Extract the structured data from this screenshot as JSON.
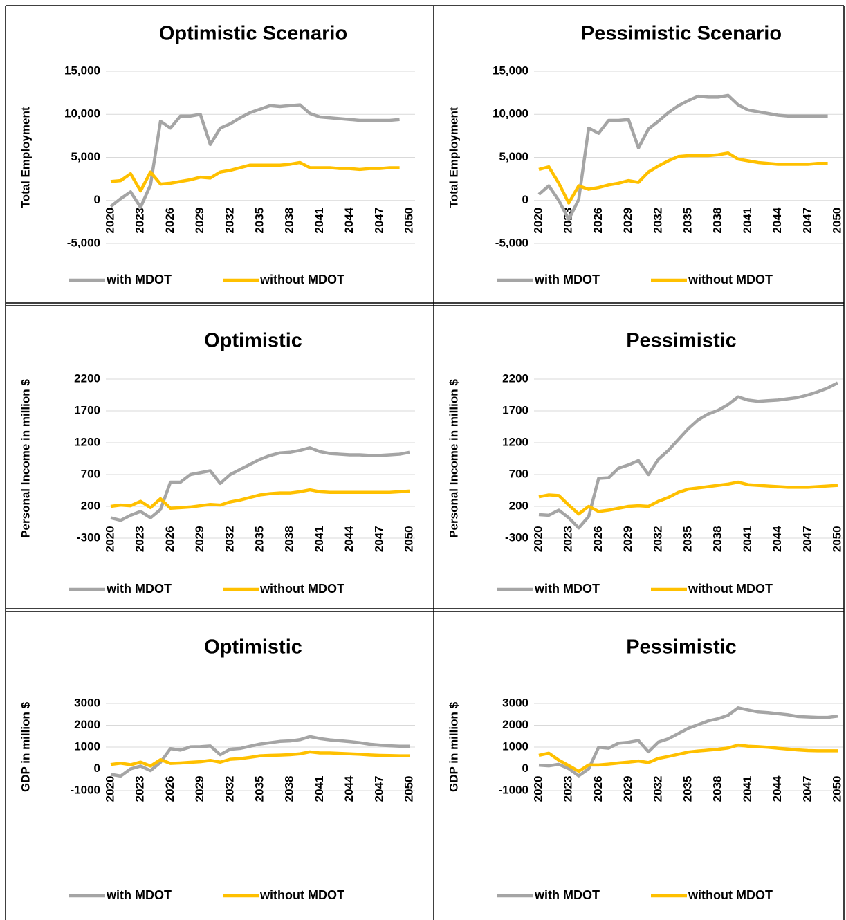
{
  "chart_data": [
    {
      "type": "line",
      "title": "Optimistic Scenario",
      "y_label": "Total Employment",
      "x": [
        2020,
        2021,
        2022,
        2023,
        2024,
        2025,
        2026,
        2027,
        2028,
        2029,
        2030,
        2031,
        2032,
        2033,
        2034,
        2035,
        2036,
        2037,
        2038,
        2039,
        2040,
        2041,
        2042,
        2043,
        2044,
        2045,
        2046,
        2047,
        2048,
        2049
      ],
      "xlim": [
        2020,
        2050
      ],
      "xticks": [
        2020,
        2023,
        2026,
        2029,
        2032,
        2035,
        2038,
        2041,
        2044,
        2047,
        2050
      ],
      "ylim": [
        -5000,
        15000
      ],
      "yticks": [
        {
          "value": -5000,
          "label": "-5,000"
        },
        0,
        {
          "value": 5000,
          "label": "5,000"
        },
        {
          "value": 10000,
          "label": "10,000"
        },
        {
          "value": 15000,
          "label": "15,000"
        }
      ],
      "grid": true,
      "legend": "bottom",
      "series": [
        {
          "name": "with MDOT",
          "color": "#a5a5a5",
          "values": [
            -700,
            200,
            1000,
            -800,
            1800,
            9200,
            8400,
            9800,
            9800,
            10000,
            6500,
            8400,
            8900,
            9600,
            10200,
            10600,
            11000,
            10900,
            11000,
            11100,
            10100,
            9700,
            9600,
            9500,
            9400,
            9300,
            9300,
            9300,
            9300,
            9400
          ]
        },
        {
          "name": "without MDOT",
          "color": "#ffc000",
          "values": [
            2200,
            2300,
            3100,
            1100,
            3300,
            1900,
            2000,
            2200,
            2400,
            2700,
            2600,
            3300,
            3500,
            3800,
            4100,
            4100,
            4100,
            4100,
            4200,
            4400,
            3800,
            3800,
            3800,
            3700,
            3700,
            3600,
            3700,
            3700,
            3800,
            3800
          ]
        }
      ]
    },
    {
      "type": "line",
      "title": "Pessimistic Scenario",
      "y_label": "Total Employment",
      "x": [
        2020,
        2021,
        2022,
        2023,
        2024,
        2025,
        2026,
        2027,
        2028,
        2029,
        2030,
        2031,
        2032,
        2033,
        2034,
        2035,
        2036,
        2037,
        2038,
        2039,
        2040,
        2041,
        2042,
        2043,
        2044,
        2045,
        2046,
        2047,
        2048,
        2049
      ],
      "xlim": [
        2020,
        2050
      ],
      "xticks": [
        2020,
        2023,
        2026,
        2029,
        2032,
        2035,
        2038,
        2041,
        2044,
        2047,
        2050
      ],
      "ylim": [
        -5000,
        15000
      ],
      "yticks": [
        {
          "value": -5000,
          "label": "-5,000"
        },
        0,
        {
          "value": 5000,
          "label": "5,000"
        },
        {
          "value": 10000,
          "label": "10,000"
        },
        {
          "value": 15000,
          "label": "15,000"
        }
      ],
      "grid": true,
      "legend": "bottom",
      "series": [
        {
          "name": "with MDOT",
          "color": "#a5a5a5",
          "values": [
            700,
            1700,
            0,
            -2200,
            100,
            8400,
            7800,
            9300,
            9300,
            9400,
            6100,
            8300,
            9200,
            10200,
            11000,
            11600,
            12100,
            12000,
            12000,
            12200,
            11100,
            10500,
            10300,
            10100,
            9900,
            9800,
            9800,
            9800,
            9800,
            9800
          ]
        },
        {
          "name": "without MDOT",
          "color": "#ffc000",
          "values": [
            3600,
            3900,
            2000,
            -300,
            1700,
            1300,
            1500,
            1800,
            2000,
            2300,
            2100,
            3300,
            4000,
            4600,
            5100,
            5200,
            5200,
            5200,
            5300,
            5500,
            4800,
            4600,
            4400,
            4300,
            4200,
            4200,
            4200,
            4200,
            4300,
            4300
          ]
        }
      ]
    },
    {
      "type": "line",
      "title": "Optimistic",
      "y_label": "Personal Income in million $",
      "x": [
        2020,
        2021,
        2022,
        2023,
        2024,
        2025,
        2026,
        2027,
        2028,
        2029,
        2030,
        2031,
        2032,
        2033,
        2034,
        2035,
        2036,
        2037,
        2038,
        2039,
        2040,
        2041,
        2042,
        2043,
        2044,
        2045,
        2046,
        2047,
        2048,
        2049,
        2050
      ],
      "xlim": [
        2020,
        2050
      ],
      "xticks": [
        2020,
        2023,
        2026,
        2029,
        2032,
        2035,
        2038,
        2041,
        2044,
        2047,
        2050
      ],
      "ylim": [
        -300,
        2200
      ],
      "yticks": [
        -300,
        200,
        700,
        1200,
        1700,
        2200
      ],
      "grid": true,
      "legend": "bottom",
      "series": [
        {
          "name": "with MDOT",
          "color": "#a5a5a5",
          "values": [
            20,
            -20,
            60,
            120,
            20,
            150,
            580,
            580,
            700,
            730,
            760,
            560,
            700,
            780,
            860,
            940,
            1000,
            1040,
            1050,
            1080,
            1120,
            1060,
            1030,
            1020,
            1010,
            1010,
            1000,
            1000,
            1010,
            1020,
            1050
          ]
        },
        {
          "name": "without MDOT",
          "color": "#ffc000",
          "values": [
            200,
            220,
            210,
            280,
            180,
            320,
            170,
            180,
            190,
            210,
            230,
            220,
            270,
            300,
            340,
            380,
            400,
            410,
            410,
            430,
            460,
            430,
            420,
            420,
            420,
            420,
            420,
            420,
            420,
            430,
            440
          ]
        }
      ]
    },
    {
      "type": "line",
      "title": "Pessimistic",
      "y_label": "Personal Income in million $",
      "x": [
        2020,
        2021,
        2022,
        2023,
        2024,
        2025,
        2026,
        2027,
        2028,
        2029,
        2030,
        2031,
        2032,
        2033,
        2034,
        2035,
        2036,
        2037,
        2038,
        2039,
        2040,
        2041,
        2042,
        2043,
        2044,
        2045,
        2046,
        2047,
        2048,
        2049,
        2050
      ],
      "xlim": [
        2020,
        2050
      ],
      "xticks": [
        2020,
        2023,
        2026,
        2029,
        2032,
        2035,
        2038,
        2041,
        2044,
        2047,
        2050
      ],
      "ylim": [
        -300,
        2200
      ],
      "yticks": [
        -300,
        200,
        700,
        1200,
        1700,
        2200
      ],
      "grid": true,
      "legend": "bottom",
      "series": [
        {
          "name": "with MDOT",
          "color": "#a5a5a5",
          "values": [
            70,
            60,
            140,
            20,
            -140,
            40,
            640,
            650,
            800,
            850,
            920,
            700,
            940,
            1080,
            1250,
            1420,
            1560,
            1650,
            1710,
            1800,
            1920,
            1870,
            1850,
            1860,
            1870,
            1890,
            1910,
            1950,
            2000,
            2060,
            2140
          ]
        },
        {
          "name": "without MDOT",
          "color": "#ffc000",
          "values": [
            350,
            380,
            370,
            220,
            80,
            200,
            120,
            140,
            170,
            200,
            210,
            200,
            280,
            340,
            420,
            470,
            490,
            510,
            530,
            550,
            580,
            540,
            530,
            520,
            510,
            500,
            500,
            500,
            510,
            520,
            530
          ]
        }
      ]
    },
    {
      "type": "line",
      "title": "Optimistic",
      "y_label": "GDP in million $",
      "x": [
        2020,
        2021,
        2022,
        2023,
        2024,
        2025,
        2026,
        2027,
        2028,
        2029,
        2030,
        2031,
        2032,
        2033,
        2034,
        2035,
        2036,
        2037,
        2038,
        2039,
        2040,
        2041,
        2042,
        2043,
        2044,
        2045,
        2046,
        2047,
        2048,
        2049,
        2050
      ],
      "xlim": [
        2020,
        2050
      ],
      "xticks": [
        2020,
        2023,
        2026,
        2029,
        2032,
        2035,
        2038,
        2041,
        2044,
        2047,
        2050
      ],
      "ylim": [
        -1000,
        3000
      ],
      "yticks": [
        -1000,
        0,
        1000,
        2000,
        3000
      ],
      "grid": true,
      "legend": "bottom",
      "series": [
        {
          "name": "with MDOT",
          "color": "#a5a5a5",
          "values": [
            -250,
            -330,
            0,
            130,
            -80,
            300,
            930,
            860,
            1010,
            1020,
            1050,
            650,
            900,
            940,
            1040,
            1140,
            1200,
            1260,
            1280,
            1340,
            1480,
            1390,
            1330,
            1290,
            1250,
            1200,
            1130,
            1090,
            1060,
            1040,
            1040
          ]
        },
        {
          "name": "without MDOT",
          "color": "#ffc000",
          "values": [
            200,
            260,
            190,
            310,
            130,
            420,
            250,
            270,
            300,
            330,
            390,
            310,
            440,
            470,
            530,
            600,
            620,
            630,
            650,
            690,
            780,
            730,
            730,
            710,
            690,
            670,
            640,
            620,
            610,
            600,
            600
          ]
        }
      ]
    },
    {
      "type": "line",
      "title": "Pessimistic",
      "y_label": "GDP in million $",
      "x": [
        2020,
        2021,
        2022,
        2023,
        2024,
        2025,
        2026,
        2027,
        2028,
        2029,
        2030,
        2031,
        2032,
        2033,
        2034,
        2035,
        2036,
        2037,
        2038,
        2039,
        2040,
        2041,
        2042,
        2043,
        2044,
        2045,
        2046,
        2047,
        2048,
        2049,
        2050
      ],
      "xlim": [
        2020,
        2050
      ],
      "xticks": [
        2020,
        2023,
        2026,
        2029,
        2032,
        2035,
        2038,
        2041,
        2044,
        2047,
        2050
      ],
      "ylim": [
        -1000,
        3000
      ],
      "yticks": [
        -1000,
        0,
        1000,
        2000,
        3000
      ],
      "grid": true,
      "legend": "bottom",
      "series": [
        {
          "name": "with MDOT",
          "color": "#a5a5a5",
          "values": [
            170,
            140,
            210,
            10,
            -320,
            0,
            990,
            950,
            1180,
            1220,
            1300,
            780,
            1230,
            1380,
            1620,
            1860,
            2030,
            2200,
            2300,
            2460,
            2800,
            2700,
            2610,
            2580,
            2530,
            2480,
            2400,
            2380,
            2360,
            2360,
            2420
          ]
        },
        {
          "name": "without MDOT",
          "color": "#ffc000",
          "values": [
            620,
            720,
            400,
            150,
            -110,
            180,
            180,
            220,
            270,
            310,
            360,
            290,
            480,
            570,
            670,
            770,
            820,
            860,
            900,
            960,
            1090,
            1040,
            1020,
            990,
            950,
            910,
            870,
            840,
            830,
            830,
            830
          ]
        }
      ]
    }
  ]
}
